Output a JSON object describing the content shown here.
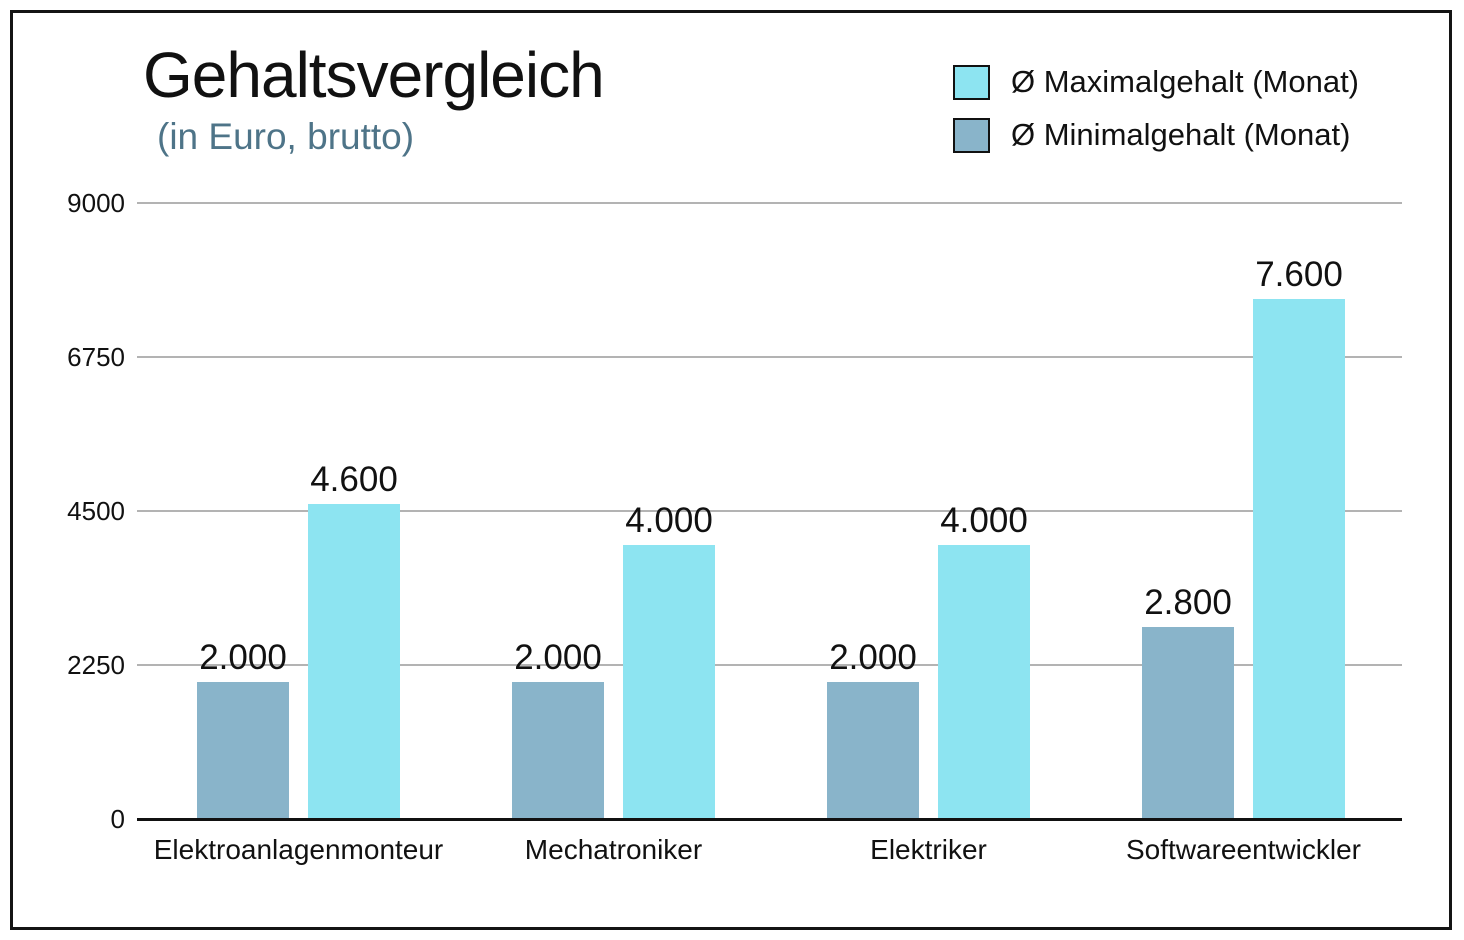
{
  "header": {
    "title": "Gehaltsvergleich",
    "subtitle": "(in Euro, brutto)"
  },
  "legend": [
    {
      "label": "Ø Maximalgehalt (Monat)",
      "series": "max",
      "color": "#8de4f1"
    },
    {
      "label": "Ø Minimalgehalt (Monat)",
      "series": "min",
      "color": "#89b4ca"
    }
  ],
  "colors": {
    "max_bar": "#8de4f1",
    "min_bar": "#89b4ca",
    "subtitle_text": "#4e7488",
    "gridline": "#b3b3b3",
    "axis": "#111111",
    "frame_border": "#141414",
    "text": "#111111",
    "background": "#ffffff"
  },
  "chart_data": {
    "type": "bar",
    "title": "Gehaltsvergleich",
    "subtitle": "(in Euro, brutto)",
    "categories": [
      "Elektroanlagenmonteur",
      "Mechatroniker",
      "Elektriker",
      "Softwareentwickler"
    ],
    "series": [
      {
        "name": "Ø Minimalgehalt (Monat)",
        "values": [
          2000,
          2000,
          2000,
          2800
        ],
        "value_labels": [
          "2.000",
          "2.000",
          "2.000",
          "2.800"
        ],
        "color": "#89b4ca"
      },
      {
        "name": "Ø Maximalgehalt (Monat)",
        "values": [
          4600,
          4000,
          4000,
          7600
        ],
        "value_labels": [
          "4.600",
          "4.000",
          "4.000",
          "7.600"
        ],
        "color": "#8de4f1"
      }
    ],
    "ylim": [
      0,
      9000
    ],
    "y_ticks": [
      0,
      2250,
      4500,
      6750,
      9000
    ],
    "y_tick_labels": [
      "0",
      "2250",
      "4500",
      "6750",
      "9000"
    ],
    "xlabel": "",
    "ylabel": "",
    "grid": true,
    "legend_position": "top-right"
  }
}
